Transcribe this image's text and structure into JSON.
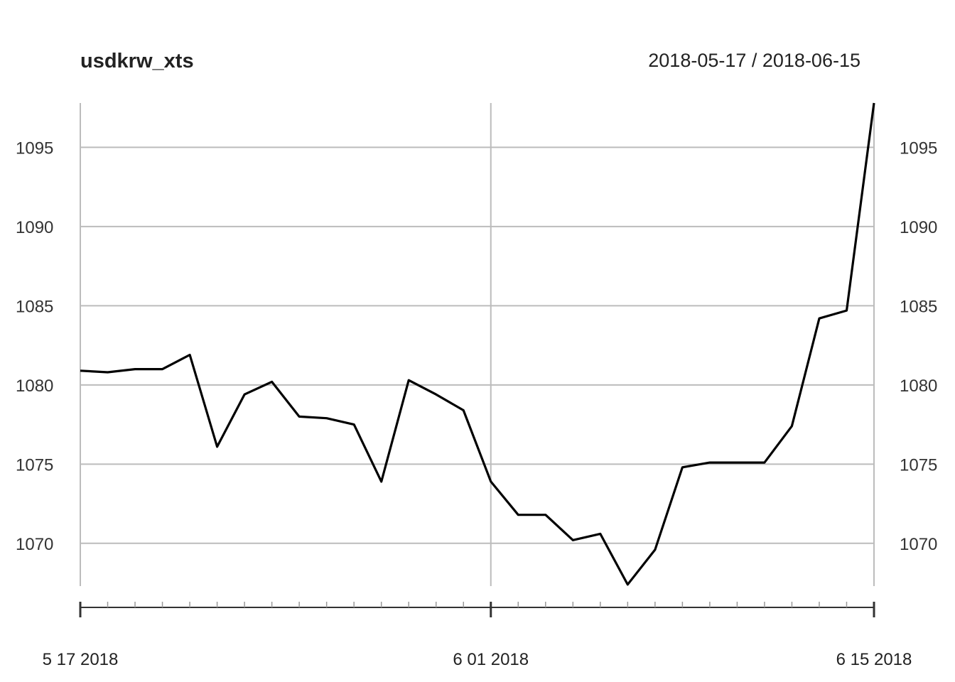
{
  "chart_data": {
    "type": "line",
    "title": "usdkrw_xts",
    "date_range": "2018-05-17 / 2018-06-15",
    "xlabel": "",
    "ylabel": "",
    "ylim": [
      1067.3,
      1097.8
    ],
    "y_ticks": [
      1070,
      1075,
      1080,
      1085,
      1090,
      1095
    ],
    "y_tick_labels": [
      "1070",
      "1075",
      "1080",
      "1085",
      "1090",
      "1095"
    ],
    "x_tick_labels": [
      {
        "date": "2018-05-17",
        "label": "5 17 2018"
      },
      {
        "date": "2018-06-01",
        "label": "6 01 2018"
      },
      {
        "date": "2018-06-15",
        "label": "6 15 2018"
      }
    ],
    "grid": true,
    "series": [
      {
        "x": [
          "2018-05-17",
          "2018-05-18",
          "2018-05-19",
          "2018-05-20",
          "2018-05-21",
          "2018-05-22",
          "2018-05-23",
          "2018-05-24",
          "2018-05-25",
          "2018-05-26",
          "2018-05-27",
          "2018-05-28",
          "2018-05-29",
          "2018-05-30",
          "2018-05-31",
          "2018-06-01",
          "2018-06-02",
          "2018-06-03",
          "2018-06-04",
          "2018-06-05",
          "2018-06-06",
          "2018-06-07",
          "2018-06-08",
          "2018-06-09",
          "2018-06-10",
          "2018-06-11",
          "2018-06-12",
          "2018-06-13",
          "2018-06-14",
          "2018-06-15"
        ],
        "values": [
          1080.9,
          1080.8,
          1081.0,
          1081.0,
          1081.9,
          1076.1,
          1079.4,
          1080.2,
          1078.0,
          1077.9,
          1077.5,
          1073.9,
          1080.3,
          1079.4,
          1078.4,
          1073.9,
          1071.8,
          1071.8,
          1070.2,
          1070.6,
          1067.4,
          1069.6,
          1074.8,
          1075.1,
          1075.1,
          1075.1,
          1077.4,
          1084.2,
          1084.7,
          1097.8
        ],
        "color": "#000000"
      }
    ]
  }
}
